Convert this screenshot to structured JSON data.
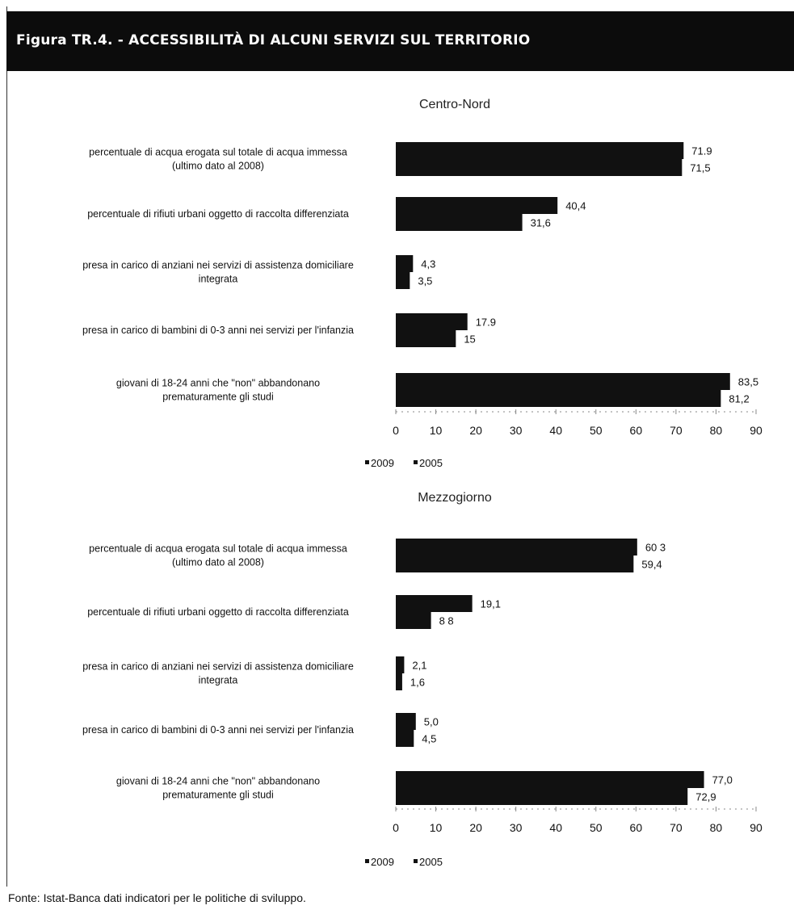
{
  "header": {
    "title": "Figura TR.4. - ACCESSIBILITÀ DI ALCUNI SERVIZI SUL TERRITORIO"
  },
  "source": "Fonte: Istat-Banca dati indicatori per le politiche di sviluppo.",
  "colors": {
    "bar_2009": "#111111",
    "bar_2005": "#111111",
    "header_bg": "#0c0c0c"
  },
  "chart_data": [
    {
      "type": "bar",
      "orientation": "horizontal",
      "title": "Centro-Nord",
      "categories": [
        [
          "percentuale di acqua erogata sul totale di acqua immessa",
          "(ultimo dato al 2008)"
        ],
        [
          "percentuale di rifiuti urbani oggetto di raccolta differenziata"
        ],
        [
          "presa in carico di anziani nei servizi di assistenza domiciliare",
          "integrata"
        ],
        [
          "presa in carico di bambini di 0-3 anni nei servizi per l'infanzia"
        ],
        [
          "giovani di 18-24 anni che \"non\" abbandonano",
          "prematuramente gli studi"
        ]
      ],
      "series": [
        {
          "name": "2009",
          "values": [
            71.9,
            40.4,
            4.3,
            17.9,
            83.5
          ],
          "labels": [
            "71.9",
            "40,4",
            "4,3",
            "17.9",
            "83,5"
          ]
        },
        {
          "name": "2005",
          "values": [
            71.5,
            31.6,
            3.5,
            15,
            81.2
          ],
          "labels": [
            "71,5",
            "31,6",
            "3,5",
            "15",
            "81,2"
          ]
        }
      ],
      "xlim": [
        0,
        90
      ],
      "ticks": [
        "0",
        "10",
        "20",
        "30",
        "40",
        "50",
        "60",
        "70",
        "80",
        "90"
      ],
      "legend": [
        "2009",
        "2005"
      ],
      "legend_position": "bottom"
    },
    {
      "type": "bar",
      "orientation": "horizontal",
      "title": "Mezzogiorno",
      "categories": [
        [
          "percentuale di acqua erogata sul totale di acqua immessa",
          "(ultimo dato al 2008)"
        ],
        [
          "percentuale di rifiuti urbani oggetto di raccolta differenziata"
        ],
        [
          "presa in carico di anziani nei servizi di assistenza domiciliare",
          "integrata"
        ],
        [
          "presa in carico di bambini di 0-3 anni nei servizi per l'infanzia"
        ],
        [
          "giovani di 18-24 anni che \"non\" abbandonano",
          "prematuramente gli studi"
        ]
      ],
      "series": [
        {
          "name": "2009",
          "values": [
            60.3,
            19.1,
            2.1,
            5.0,
            77.0
          ],
          "labels": [
            "60 3",
            "19,1",
            "2,1",
            "5,0",
            "77,0"
          ]
        },
        {
          "name": "2005",
          "values": [
            59.4,
            8.8,
            1.6,
            4.5,
            72.9
          ],
          "labels": [
            "59,4",
            "8 8",
            "1,6",
            "4,5",
            "72,9"
          ]
        }
      ],
      "xlim": [
        0,
        90
      ],
      "ticks": [
        "0",
        "10",
        "20",
        "30",
        "40",
        "50",
        "60",
        "70",
        "80",
        "90"
      ],
      "legend": [
        "2009",
        "2005"
      ],
      "legend_position": "bottom"
    }
  ]
}
